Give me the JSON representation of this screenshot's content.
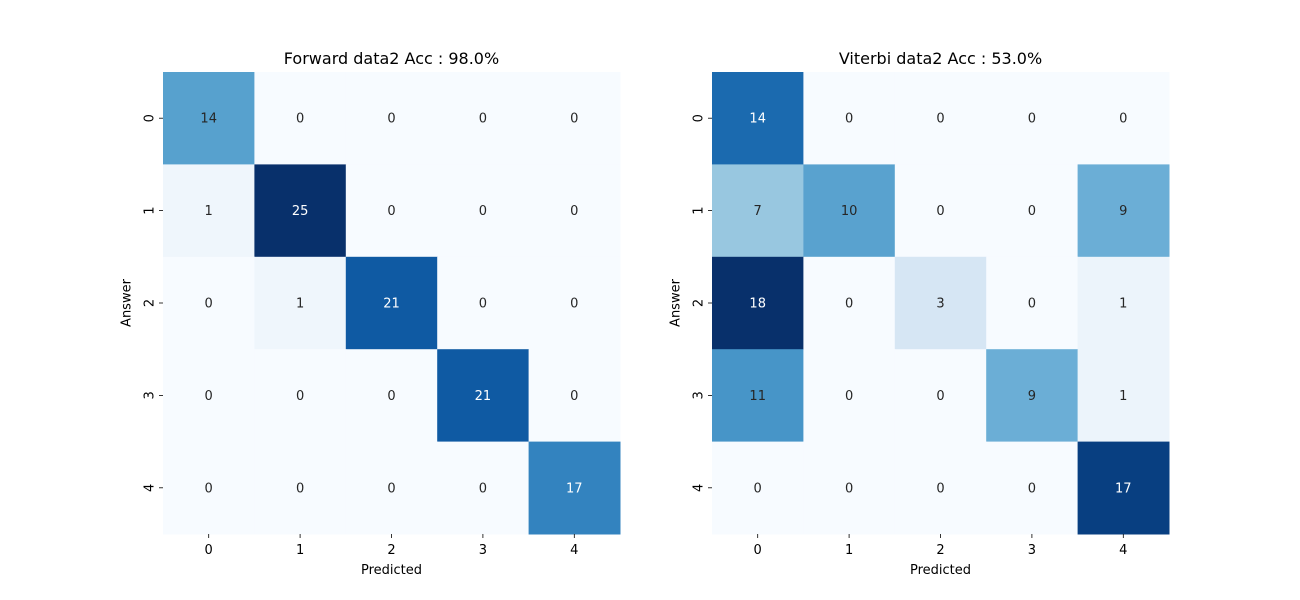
{
  "chart_data": [
    {
      "type": "heatmap",
      "title": "Forward data2 Acc : 98.0%",
      "xlabel": "Predicted",
      "ylabel": "Answer",
      "x_ticks": [
        "0",
        "1",
        "2",
        "3",
        "4"
      ],
      "y_ticks": [
        "0",
        "1",
        "2",
        "3",
        "4"
      ],
      "values": [
        [
          14,
          0,
          0,
          0,
          0
        ],
        [
          1,
          25,
          0,
          0,
          0
        ],
        [
          0,
          1,
          21,
          0,
          0
        ],
        [
          0,
          0,
          0,
          21,
          0
        ],
        [
          0,
          0,
          0,
          0,
          17
        ]
      ],
      "colormap": "Blues",
      "colorbar": false
    },
    {
      "type": "heatmap",
      "title": "Viterbi data2 Acc : 53.0%",
      "xlabel": "Predicted",
      "ylabel": "Answer",
      "x_ticks": [
        "0",
        "1",
        "2",
        "3",
        "4"
      ],
      "y_ticks": [
        "0",
        "1",
        "2",
        "3",
        "4"
      ],
      "values": [
        [
          14,
          0,
          0,
          0,
          0
        ],
        [
          7,
          10,
          0,
          0,
          9
        ],
        [
          18,
          0,
          3,
          0,
          1
        ],
        [
          11,
          0,
          0,
          9,
          1
        ],
        [
          0,
          0,
          0,
          0,
          17
        ]
      ],
      "colormap": "Blues",
      "colorbar": false
    }
  ]
}
